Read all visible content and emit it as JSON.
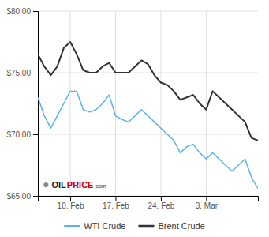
{
  "chart_data": {
    "type": "line",
    "x": [
      0,
      1,
      2,
      3,
      4,
      5,
      6,
      7,
      8,
      9,
      10,
      11,
      12,
      13,
      14,
      15,
      16,
      17,
      18,
      19,
      20,
      21,
      22,
      23,
      24,
      25,
      26,
      27,
      28,
      29,
      30,
      31,
      32,
      33,
      34
    ],
    "series": [
      {
        "name": "WTI Crude",
        "color": "#5ab4e5",
        "values": [
          73.0,
          71.5,
          70.5,
          71.5,
          72.5,
          73.5,
          73.5,
          72.0,
          71.8,
          72.0,
          72.5,
          73.2,
          71.5,
          71.2,
          71.0,
          71.5,
          72.0,
          71.5,
          71.0,
          70.5,
          70.0,
          69.5,
          68.5,
          69.0,
          69.2,
          68.5,
          68.0,
          68.5,
          68.0,
          67.5,
          67.0,
          67.5,
          68.0,
          66.5,
          65.6
        ]
      },
      {
        "name": "Brent Crude",
        "color": "#333333",
        "values": [
          76.5,
          75.5,
          74.8,
          75.5,
          77.0,
          77.5,
          76.5,
          75.2,
          75.0,
          75.0,
          75.5,
          75.8,
          75.0,
          75.0,
          75.0,
          75.5,
          76.0,
          75.7,
          74.8,
          74.2,
          74.0,
          73.5,
          72.8,
          73.0,
          73.2,
          72.5,
          72.0,
          73.5,
          73.0,
          72.5,
          72.0,
          71.5,
          71.0,
          69.7,
          69.5
        ]
      }
    ],
    "xlim": [
      0,
      34
    ],
    "xticks": [
      {
        "value": 5,
        "label": "10. Feb"
      },
      {
        "value": 12,
        "label": "17. Feb"
      },
      {
        "value": 19,
        "label": "24. Feb"
      },
      {
        "value": 26,
        "label": "3. Mar"
      }
    ],
    "ylim": [
      65.0,
      80.0
    ],
    "yticks": [
      {
        "value": 65.0,
        "label": "$65.00"
      },
      {
        "value": 70.0,
        "label": "$70.00"
      },
      {
        "value": 75.0,
        "label": "$75.00"
      },
      {
        "value": 80.0,
        "label": "$80.00"
      }
    ],
    "grid": true,
    "legend": "bottom",
    "annotations": [
      "●",
      "OIL",
      "PRICE",
      ".com"
    ]
  }
}
